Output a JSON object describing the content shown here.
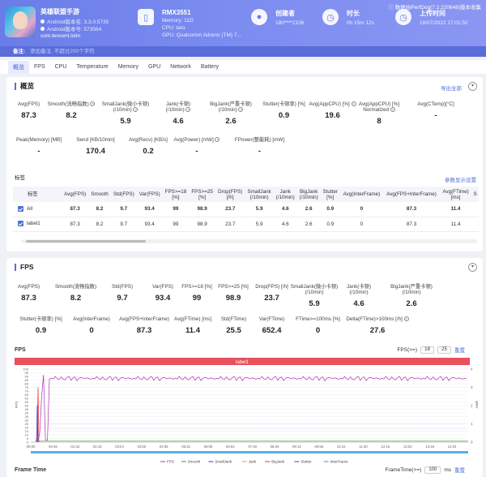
{
  "header": {
    "app_name": "英雄联盟手游",
    "android_version": "Android版本名: 3.3.0.5735",
    "android_code": "Android版本号: 573564",
    "package": "com.tencent.lolm",
    "device": {
      "name": "RMX3551",
      "memory": "Memory: 11G",
      "cpu": "CPU: taro",
      "gpu": "GPU: Qualcomm Adreno (TM) 7..."
    },
    "creator": {
      "title": "创建者",
      "value": "180****2106"
    },
    "duration": {
      "title": "时长",
      "value": "0h 15m 12s"
    },
    "upload": {
      "title": "上传时间",
      "value": "18/07/2022 17:01:50"
    },
    "source_note": "数据由PerfDog(7.2.220648)版本收集"
  },
  "remark": {
    "label": "备注:",
    "placeholder": "添加备注, 不超过200个字符"
  },
  "tabs": [
    "概览",
    "FPS",
    "CPU",
    "Temperature",
    "Memory",
    "GPU",
    "Network",
    "Battery"
  ],
  "overview": {
    "title": "概览",
    "export_label": "导出全部",
    "row1": [
      {
        "label": "Avg(FPS)",
        "value": "87.3"
      },
      {
        "label": "Smooth(流畅指数)",
        "value": "8.2",
        "help": true
      },
      {
        "label": "SmallJank(微小卡顿)\n(/10min)",
        "value": "5.9",
        "help": true
      },
      {
        "label": "Jank(卡顿)\n(/10min)",
        "value": "4.6",
        "help": true
      },
      {
        "label": "BigJank(严重卡顿)\n(/10min)",
        "value": "2.6",
        "help": true
      },
      {
        "label": "Stutter(卡顿率) [%]",
        "value": "0.9"
      },
      {
        "label": "Avg(AppCPU) [%]",
        "value": "19.6",
        "help": true
      },
      {
        "label": "Avg(AppCPU) [%]\nNormalized",
        "value": "8",
        "help": true
      },
      {
        "label": "Avg(CTemp)[°C]",
        "value": "-"
      }
    ],
    "row2": [
      {
        "label": "Peak(Memory) [MB]",
        "value": "-"
      },
      {
        "label": "Send [KB/10min]",
        "value": "170.4"
      },
      {
        "label": "Avg(Recv) [KB/s]",
        "value": "0.2"
      },
      {
        "label": "Avg(Power) [mW]",
        "value": "-",
        "help": true
      },
      {
        "label": "FPower(整能耗) [mW]",
        "value": "-"
      }
    ]
  },
  "labels_section": {
    "title": "标签",
    "settings_link": "参数显示设置",
    "columns": [
      "标签",
      "Avg(FPS)",
      "Smooth",
      "Std(FPS)",
      "Var(FPS)",
      "FPS>=18\n[%]",
      "FPS>=25\n[%]",
      "Drop(FPS)\n[/h]",
      "SmallJank\n(/10min)",
      "Jank\n(/10min)",
      "BigJank\n(/10min)",
      "Stutter\n[%]",
      "Avg(InterFrame)",
      "Avg(FPS+InterFrame)",
      "Avg(FTime)\n[ms]",
      "S"
    ],
    "rows": [
      {
        "label": "All",
        "cells": [
          "87.3",
          "8.2",
          "9.7",
          "93.4",
          "99",
          "98.9",
          "23.7",
          "5.9",
          "4.6",
          "2.6",
          "0.9",
          "0",
          "87.3",
          "11.4",
          ""
        ]
      },
      {
        "label": "label1",
        "cells": [
          "87.3",
          "8.2",
          "9.7",
          "93.4",
          "99",
          "98.9",
          "23.7",
          "5.9",
          "4.6",
          "2.6",
          "0.9",
          "0",
          "87.3",
          "11.4",
          ""
        ]
      }
    ]
  },
  "fps_section": {
    "title": "FPS",
    "row1": [
      {
        "label": "Avg(FPS)",
        "value": "87.3"
      },
      {
        "label": "Smooth(流畅指数)",
        "value": "8.2"
      },
      {
        "label": "Std(FPS)",
        "value": "9.7"
      },
      {
        "label": "Var(FPS)",
        "value": "93.4"
      },
      {
        "label": "FPS>=18 [%]",
        "value": "99"
      },
      {
        "label": "FPS>=25 [%]",
        "value": "98.9"
      },
      {
        "label": "Drop(FPS) [/h]",
        "value": "23.7"
      },
      {
        "label": "SmallJank(微小卡顿)\n(/10min)",
        "value": "5.9"
      },
      {
        "label": "Jank(卡顿)\n(/10min)",
        "value": "4.6"
      },
      {
        "label": "BigJank(严重卡顿)\n(/10min)",
        "value": "2.6"
      }
    ],
    "row2": [
      {
        "label": "Stutter(卡顿率) [%]",
        "value": "0.9"
      },
      {
        "label": "Avg(InterFrame)",
        "value": "0"
      },
      {
        "label": "Avg(FPS+InterFrame)",
        "value": "87.3"
      },
      {
        "label": "Avg(FTime) [ms]",
        "value": "11.4"
      },
      {
        "label": "Std(FTime)",
        "value": "25.5"
      },
      {
        "label": "Var(FTime)",
        "value": "652.4"
      },
      {
        "label": "FTime>=100ms [%]",
        "value": "0"
      },
      {
        "label": "Delta(FTime)>100ms [/h]",
        "value": "27.6",
        "help": true
      }
    ],
    "chart_title": "FPS",
    "threshold_label": "FPS(>=)",
    "threshold_values": [
      "18",
      "25"
    ],
    "reset_label": "重置",
    "label_bar": "label1",
    "frame_time_title": "Frame Time",
    "frame_time_threshold_label": "FrameTime(>=)",
    "frame_time_value": "100",
    "frame_time_unit": "ms",
    "frame_time_reset": "重置"
  },
  "chart_data": {
    "type": "line",
    "title": "FPS",
    "ylabel_left": "FPS",
    "ylabel_right": "Jank",
    "ylim_left": [
      0,
      100
    ],
    "ylim_right": [
      0,
      4
    ],
    "y_ticks_left": [
      "0",
      "5",
      "10",
      "15",
      "20",
      "25",
      "30",
      "35",
      "40",
      "45",
      "50",
      "55",
      "60",
      "65",
      "70",
      "75",
      "80",
      "85",
      "90",
      "95",
      "100"
    ],
    "y_ticks_right": [
      "0",
      "1",
      "2",
      "3",
      "4"
    ],
    "x_ticks": [
      "00:00",
      "00:46",
      "01:32",
      "02:18",
      "03:04",
      "03:50",
      "04:36",
      "05:22",
      "06:08",
      "06:54",
      "07:40",
      "08:26",
      "09:12",
      "09:58",
      "10:44",
      "11:30",
      "12:16",
      "13:02",
      "13:48",
      "14:34"
    ],
    "legend": [
      "FPS",
      "Smooth",
      "SmallJank",
      "Jank",
      "BigJank",
      "Stutter",
      "InterFrame"
    ],
    "colors": {
      "FPS": "#b12fb5",
      "Smooth": "#3a9a3a",
      "SmallJank": "#3a3ad8",
      "Jank": "#f0a030",
      "BigJank": "#e03030",
      "Stutter": "#5a3ab0",
      "InterFrame": "#3aa0e0"
    },
    "series": [
      {
        "name": "FPS",
        "values": [
          3,
          10,
          88,
          90,
          89,
          88,
          89,
          90,
          88,
          89,
          88,
          89,
          88,
          89,
          90,
          88,
          89,
          88,
          89,
          88,
          89,
          88,
          89,
          90,
          88,
          89,
          88,
          89,
          88,
          89,
          88,
          90,
          89,
          88,
          89,
          88
        ]
      },
      {
        "name": "BigJank",
        "values": [
          0,
          3,
          0
        ]
      }
    ],
    "xlim": [
      "00:00",
      "15:12"
    ]
  }
}
